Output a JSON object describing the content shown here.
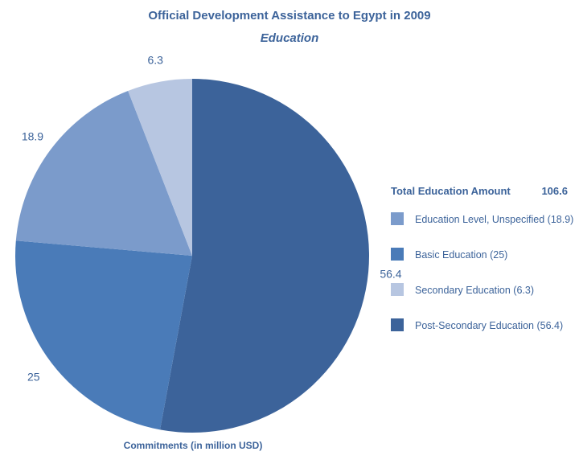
{
  "chart_data": {
    "type": "pie",
    "title": "Official Development Assistance to Egypt in 2009",
    "subtitle": "Education",
    "note": "Commitments (in million USD)",
    "total": {
      "label": "Total Education Amount",
      "value": "106.6"
    },
    "slices": [
      {
        "name": "Post-Secondary Education",
        "value": 56.4,
        "label": "56.4",
        "legend": "Post-Secondary Education (56.4)",
        "color": "#3c639a"
      },
      {
        "name": "Basic Education",
        "value": 25,
        "label": "25",
        "legend": "Basic Education (25)",
        "color": "#4a7bb8"
      },
      {
        "name": "Education Level, Unspecified",
        "value": 18.9,
        "label": "18.9",
        "legend": "Education Level, Unspecified (18.9)",
        "color": "#7b9bcb"
      },
      {
        "name": "Secondary Education",
        "value": 6.3,
        "label": "6.3",
        "legend": "Secondary Education (6.3)",
        "color": "#b7c6e1"
      }
    ],
    "legend_order": [
      2,
      1,
      3,
      0
    ],
    "legend_position": "right",
    "start_angle_deg": 0,
    "direction": "clockwise"
  }
}
